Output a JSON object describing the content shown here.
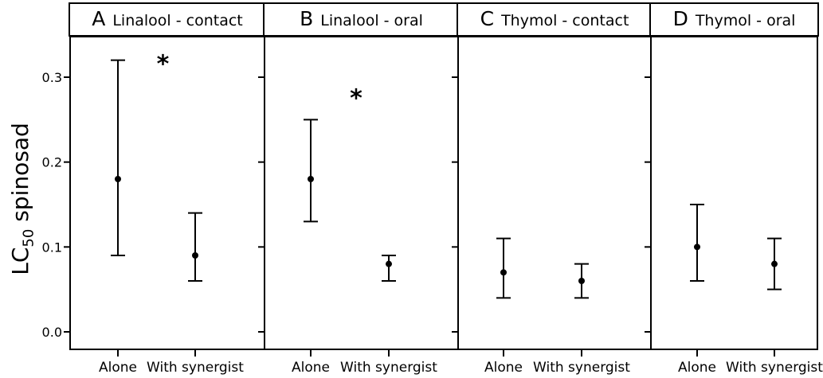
{
  "y_axis": {
    "label_main": "LC",
    "label_sub": "50",
    "label_rest": " spinosad"
  },
  "chart_data": {
    "type": "scatter",
    "description": "Point estimates with confidence interval error bars, four facet panels",
    "ylabel": "LC50 spinosad",
    "ylim": [
      -0.02,
      0.35
    ],
    "yticks": [
      0.0,
      0.1,
      0.2,
      0.3
    ],
    "ytick_labels": [
      "0.0",
      "0.1",
      "0.2",
      "0.3"
    ],
    "categories": [
      "Alone",
      "With synergist"
    ],
    "grid": false,
    "legend_position": "none",
    "panels": [
      {
        "panel_label": "A",
        "title": "Linalool - contact",
        "significance": "*",
        "sig_y": 0.32,
        "points": [
          {
            "category": "Alone",
            "value": 0.18,
            "ci_low": 0.09,
            "ci_high": 0.32
          },
          {
            "category": "With synergist",
            "value": 0.09,
            "ci_low": 0.06,
            "ci_high": 0.14
          }
        ]
      },
      {
        "panel_label": "B",
        "title": "Linalool - oral",
        "significance": "*",
        "sig_y": 0.28,
        "points": [
          {
            "category": "Alone",
            "value": 0.18,
            "ci_low": 0.13,
            "ci_high": 0.25
          },
          {
            "category": "With synergist",
            "value": 0.08,
            "ci_low": 0.06,
            "ci_high": 0.09
          }
        ]
      },
      {
        "panel_label": "C",
        "title": "Thymol - contact",
        "significance": "",
        "sig_y": null,
        "points": [
          {
            "category": "Alone",
            "value": 0.07,
            "ci_low": 0.04,
            "ci_high": 0.11
          },
          {
            "category": "With synergist",
            "value": 0.06,
            "ci_low": 0.04,
            "ci_high": 0.08
          }
        ]
      },
      {
        "panel_label": "D",
        "title": "Thymol - oral",
        "significance": "",
        "sig_y": null,
        "points": [
          {
            "category": "Alone",
            "value": 0.1,
            "ci_low": 0.06,
            "ci_high": 0.15
          },
          {
            "category": "With synergist",
            "value": 0.08,
            "ci_low": 0.05,
            "ci_high": 0.11
          }
        ]
      }
    ]
  }
}
